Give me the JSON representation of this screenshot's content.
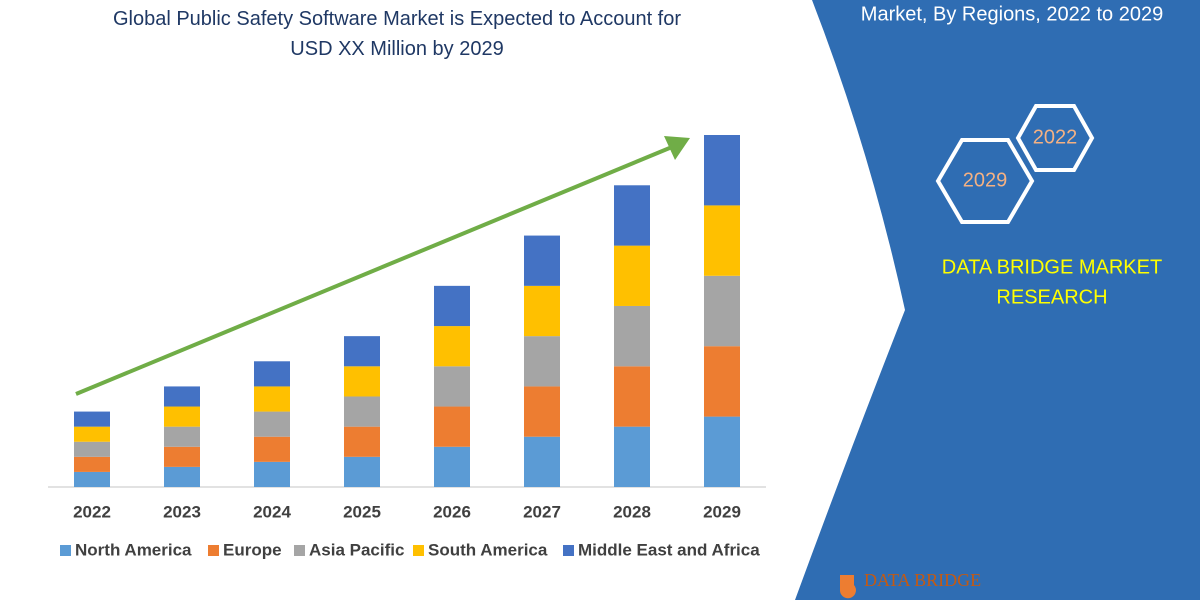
{
  "chart_data": {
    "type": "stacked_bar",
    "title": "Global Public Safety Software Market is Expected to Account for USD XX Million by 2029",
    "categories": [
      "2022",
      "2023",
      "2024",
      "2025",
      "2026",
      "2027",
      "2028",
      "2029"
    ],
    "series": [
      {
        "name": "North America",
        "color": "#5b9bd5",
        "values": [
          15,
          20,
          25,
          30,
          40,
          50,
          60,
          70
        ]
      },
      {
        "name": "Europe",
        "color": "#ed7d31",
        "values": [
          15,
          20,
          25,
          30,
          40,
          50,
          60,
          70
        ]
      },
      {
        "name": "Asia Pacific",
        "color": "#a5a5a5",
        "values": [
          15,
          20,
          25,
          30,
          40,
          50,
          60,
          70
        ]
      },
      {
        "name": "South America",
        "color": "#ffc000",
        "values": [
          15,
          20,
          25,
          30,
          40,
          50,
          60,
          70
        ]
      },
      {
        "name": "Middle East and Africa",
        "color": "#4472c4",
        "values": [
          15,
          20,
          25,
          30,
          40,
          50,
          60,
          70
        ]
      }
    ],
    "trend_color": "#70ad47"
  },
  "panel": {
    "heading": "Market, By Regions, 2022 to 2029",
    "hex_labels": [
      "2022",
      "2029"
    ],
    "brand": [
      "DATA BRIDGE MARKET",
      "RESEARCH"
    ],
    "logo_text": "DATA BRIDGE"
  }
}
